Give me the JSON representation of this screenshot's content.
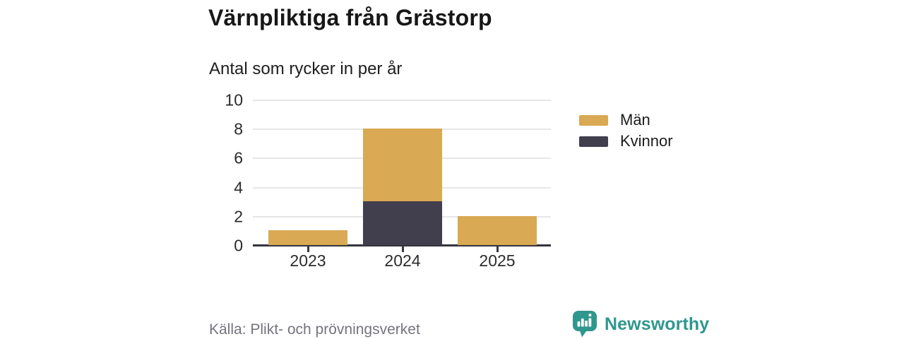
{
  "header": {
    "title": "Värnpliktiga från Grästorp",
    "subtitle": "Antal som rycker in per år"
  },
  "chart_data": {
    "type": "bar",
    "stacked": true,
    "title": "Värnpliktiga från Grästorp",
    "subtitle": "Antal som rycker in per år",
    "categories": [
      "2023",
      "2024",
      "2025"
    ],
    "series": [
      {
        "name": "Män",
        "color": "#D9A953",
        "values": [
          1,
          5,
          2
        ]
      },
      {
        "name": "Kvinnor",
        "color": "#413E4E",
        "values": [
          0,
          3,
          0
        ]
      }
    ],
    "stack_order_bottom_to_top": [
      "Kvinnor",
      "Män"
    ],
    "xlabel": "",
    "ylabel": "",
    "ylim": [
      0,
      10
    ],
    "yticks": [
      0,
      2,
      4,
      6,
      8,
      10
    ],
    "grid": true,
    "legend_position": "right"
  },
  "footer": {
    "source": "Källa: Plikt- och prövningsverket",
    "brand_name": "Newsworthy"
  },
  "colors": {
    "men_gold": "#D9A953",
    "women_dark": "#413E4E",
    "brand_teal": "#2F978E",
    "gridline": "#E6E6E8",
    "axis_dark": "#34333D",
    "muted_text": "#75747E"
  }
}
